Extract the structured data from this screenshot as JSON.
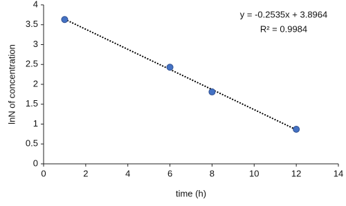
{
  "chart_data": {
    "type": "scatter",
    "x_label": "time (h)",
    "y_label": "lnN of concentration",
    "annotations": [
      "y = -0.2535x + 3.8964",
      "R² = 0.9984"
    ],
    "series": [
      {
        "color": "#4472c4",
        "x": [
          1,
          6,
          8,
          12
        ],
        "values": [
          3.63,
          2.43,
          1.81,
          0.87
        ]
      }
    ],
    "xlim": [
      0,
      14
    ],
    "xticks": [
      0,
      2,
      4,
      6,
      8,
      10,
      12,
      14
    ],
    "ylim": [
      0,
      4
    ],
    "yticks": [
      0,
      0.5,
      1,
      1.5,
      2,
      2.5,
      3,
      3.5,
      4
    ],
    "trendline": true,
    "grid": false
  }
}
